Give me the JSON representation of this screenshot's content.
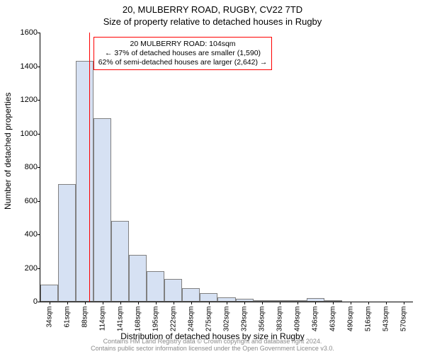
{
  "title": {
    "main": "20, MULBERRY ROAD, RUGBY, CV22 7TD",
    "sub": "Size of property relative to detached houses in Rugby"
  },
  "chart": {
    "type": "histogram",
    "bar_fill": "#d6e1f3",
    "bar_stroke": "#808080",
    "background": "#ffffff",
    "y": {
      "label": "Number of detached properties",
      "min": 0,
      "max": 1600,
      "step": 200
    },
    "x": {
      "label": "Distribution of detached houses by size in Rugby",
      "labels": [
        "34sqm",
        "61sqm",
        "88sqm",
        "114sqm",
        "141sqm",
        "168sqm",
        "195sqm",
        "222sqm",
        "248sqm",
        "275sqm",
        "302sqm",
        "329sqm",
        "356sqm",
        "383sqm",
        "409sqm",
        "436sqm",
        "463sqm",
        "490sqm",
        "516sqm",
        "543sqm",
        "570sqm"
      ]
    },
    "bars": [
      100,
      700,
      1430,
      1090,
      480,
      280,
      180,
      135,
      80,
      50,
      25,
      15,
      10,
      5,
      5,
      22,
      3,
      2,
      0,
      0,
      0
    ],
    "marker": {
      "value": 104,
      "x_range_min": 34,
      "x_range_max": 570,
      "color": "#ff0000"
    },
    "annotation": {
      "border_color": "#ff0000",
      "lines": [
        "20 MULBERRY ROAD: 104sqm",
        "← 37% of detached houses are smaller (1,590)",
        "62% of semi-detached houses are larger (2,642) →"
      ]
    }
  },
  "footer": {
    "line1": "Contains HM Land Registry data © Crown copyright and database right 2024.",
    "line2": "Contains public sector information licensed under the Open Government Licence v3.0."
  }
}
